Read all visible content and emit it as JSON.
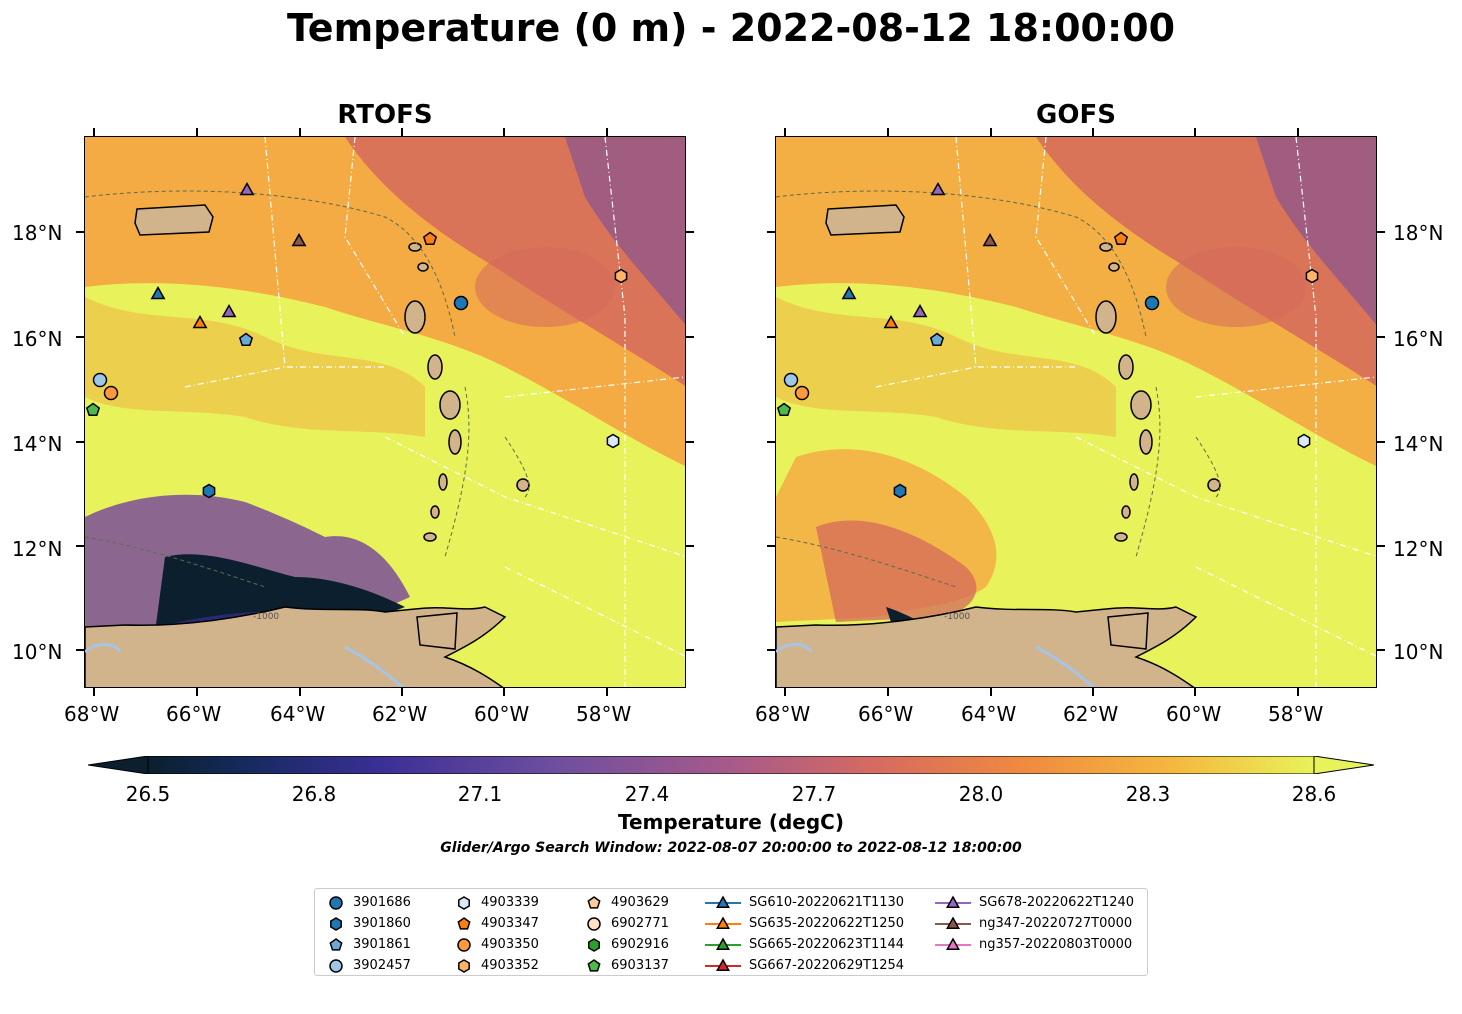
{
  "title": "Temperature (0 m) - 2022-08-12 18:00:00",
  "panels": [
    {
      "title": "RTOFS"
    },
    {
      "title": "GOFS"
    }
  ],
  "lat_labels": [
    "18°N",
    "16°N",
    "14°N",
    "12°N",
    "10°N"
  ],
  "lon_labels": [
    "68°W",
    "66°W",
    "64°W",
    "62°W",
    "60°W",
    "58°W"
  ],
  "contour_label": "-1000",
  "colorbar": {
    "title": "Temperature (degC)",
    "ticks": [
      "26.5",
      "26.8",
      "27.1",
      "27.4",
      "27.7",
      "28.0",
      "28.3",
      "28.6"
    ],
    "min_color": "#0b1f2e",
    "max_color": "#e8f25a"
  },
  "search_window": "Glider/Argo Search Window: 2022-08-07 20:00:00 to 2022-08-12 18:00:00",
  "legend": [
    {
      "label": "3901686",
      "marker": "circle",
      "color": "#1f77b4"
    },
    {
      "label": "3901860",
      "marker": "hexagon",
      "color": "#1f77b4"
    },
    {
      "label": "3901861",
      "marker": "pentagon",
      "color": "#6aa8d8"
    },
    {
      "label": "3902457",
      "marker": "circle",
      "color": "#9dc6e8"
    },
    {
      "label": "4903339",
      "marker": "hexagon",
      "color": "#dbe9f6"
    },
    {
      "label": "4903347",
      "marker": "pentagon",
      "color": "#ff7f0e"
    },
    {
      "label": "4903350",
      "marker": "circle",
      "color": "#ff9a3c"
    },
    {
      "label": "4903352",
      "marker": "hexagon",
      "color": "#ffb366"
    },
    {
      "label": "4903629",
      "marker": "pentagon",
      "color": "#ffcc99"
    },
    {
      "label": "6902771",
      "marker": "circle",
      "color": "#ffe0c2"
    },
    {
      "label": "6902916",
      "marker": "hexagon",
      "color": "#2ca02c"
    },
    {
      "label": "6903137",
      "marker": "pentagon",
      "color": "#4cbb4c"
    },
    {
      "label": "SG610-20220621T1130",
      "marker": "triangle",
      "color": "#1f77b4"
    },
    {
      "label": "SG635-20220622T1250",
      "marker": "triangle",
      "color": "#ff7f0e"
    },
    {
      "label": "SG665-20220623T1144",
      "marker": "triangle",
      "color": "#2ca02c"
    },
    {
      "label": "SG667-20220629T1254",
      "marker": "triangle",
      "color": "#d62728"
    },
    {
      "label": "SG678-20220622T1240",
      "marker": "triangle",
      "color": "#9467bd"
    },
    {
      "label": "ng347-20220727T0000",
      "marker": "triangle",
      "color": "#8c564b"
    },
    {
      "label": "ng357-20220803T0000",
      "marker": "triangle",
      "color": "#e377c2"
    }
  ],
  "colors": {
    "land": "#d2b48c",
    "lakes": "#a6c5e6",
    "sea_warm": "#e8f25a",
    "sea_orange": "#f5a340",
    "sea_red": "#d46a5c",
    "sea_purple": "#7a4f9a",
    "sea_dark": "#0b1f2e"
  }
}
